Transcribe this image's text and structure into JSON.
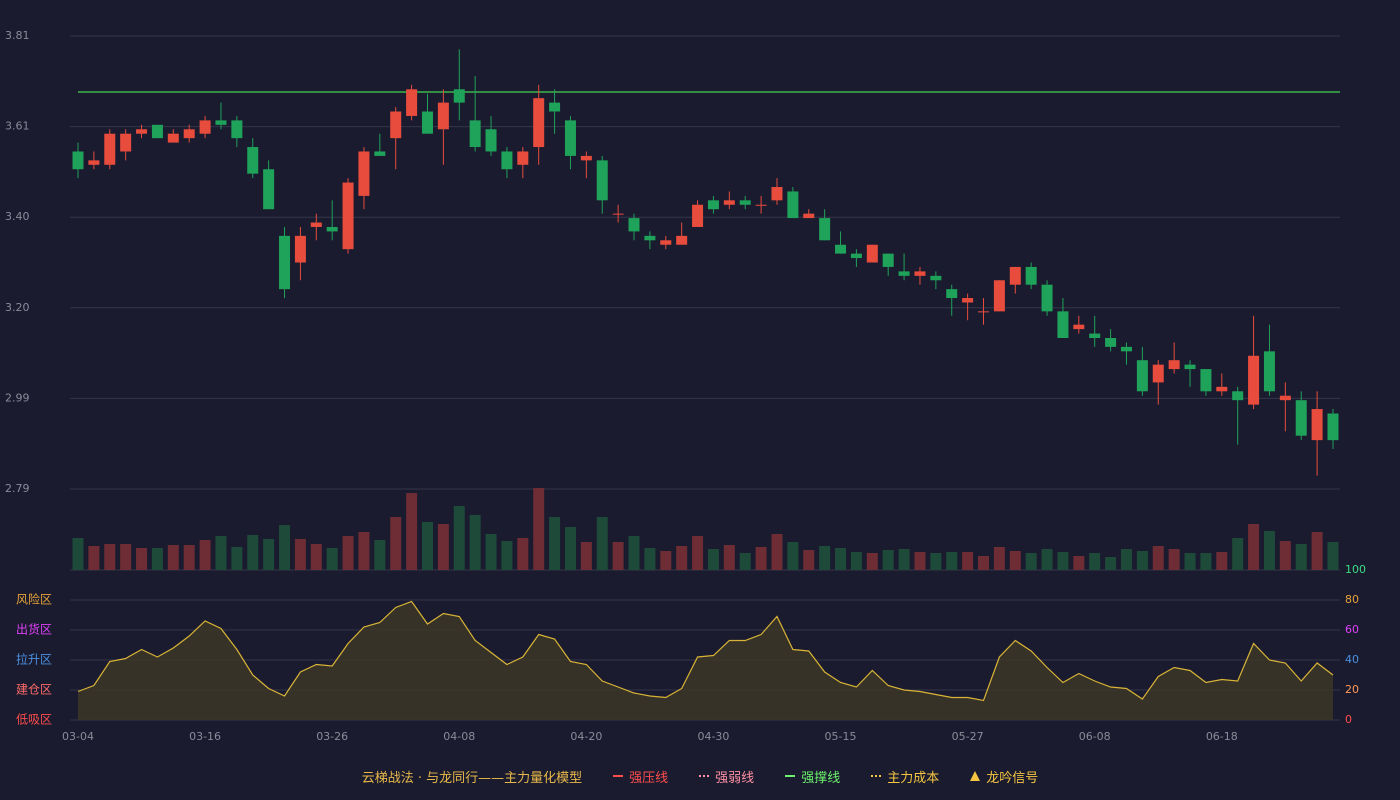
{
  "chart_data": {
    "type": "candlestick",
    "categories": [
      "03-04",
      null,
      null,
      null,
      null,
      null,
      null,
      null,
      "03-16",
      null,
      null,
      null,
      null,
      null,
      null,
      null,
      "03-26",
      null,
      null,
      null,
      null,
      null,
      null,
      null,
      "04-08",
      null,
      null,
      null,
      null,
      null,
      null,
      null,
      "04-20",
      null,
      null,
      null,
      null,
      null,
      null,
      null,
      "04-30",
      null,
      null,
      null,
      null,
      null,
      null,
      null,
      "05-15",
      null,
      null,
      null,
      null,
      null,
      null,
      null,
      "05-27",
      null,
      null,
      null,
      null,
      null,
      null,
      null,
      "06-08",
      null,
      null,
      null,
      null,
      null,
      null,
      null,
      "06-18",
      null,
      null,
      null,
      null,
      null,
      null,
      null
    ],
    "open": [
      3.55,
      3.52,
      3.52,
      3.55,
      3.59,
      3.61,
      3.57,
      3.58,
      3.59,
      3.62,
      3.62,
      3.56,
      3.51,
      3.36,
      3.3,
      3.38,
      3.38,
      3.33,
      3.45,
      3.55,
      3.58,
      3.63,
      3.64,
      3.6,
      3.69,
      3.62,
      3.6,
      3.55,
      3.52,
      3.56,
      3.66,
      3.62,
      3.53,
      3.53,
      3.41,
      3.4,
      3.36,
      3.34,
      3.34,
      3.38,
      3.44,
      3.43,
      3.44,
      3.43,
      3.44,
      3.46,
      3.4,
      3.4,
      3.34,
      3.32,
      3.3,
      3.32,
      3.28,
      3.27,
      3.27,
      3.24,
      3.21,
      3.19,
      3.19,
      3.25,
      3.29,
      3.25,
      3.19,
      3.15,
      3.14,
      3.13,
      3.11,
      3.08,
      3.03,
      3.06,
      3.07,
      3.06,
      3.01,
      3.01,
      2.98,
      3.1,
      2.99,
      2.99,
      2.9,
      2.96
    ],
    "high": [
      3.57,
      3.55,
      3.6,
      3.6,
      3.61,
      3.61,
      3.6,
      3.61,
      3.63,
      3.66,
      3.63,
      3.58,
      3.53,
      3.38,
      3.38,
      3.41,
      3.44,
      3.49,
      3.56,
      3.59,
      3.65,
      3.7,
      3.68,
      3.69,
      3.78,
      3.72,
      3.63,
      3.56,
      3.56,
      3.7,
      3.69,
      3.63,
      3.55,
      3.54,
      3.43,
      3.41,
      3.37,
      3.36,
      3.39,
      3.44,
      3.45,
      3.46,
      3.45,
      3.45,
      3.49,
      3.47,
      3.42,
      3.42,
      3.37,
      3.33,
      3.34,
      3.32,
      3.32,
      3.29,
      3.28,
      3.25,
      3.23,
      3.22,
      3.26,
      3.29,
      3.3,
      3.26,
      3.22,
      3.18,
      3.18,
      3.15,
      3.12,
      3.11,
      3.08,
      3.12,
      3.08,
      3.06,
      3.05,
      3.02,
      3.18,
      3.16,
      3.03,
      3.01,
      3.01,
      2.97
    ],
    "low": [
      3.49,
      3.51,
      3.51,
      3.53,
      3.58,
      3.58,
      3.57,
      3.57,
      3.58,
      3.6,
      3.56,
      3.49,
      3.42,
      3.22,
      3.26,
      3.35,
      3.35,
      3.32,
      3.42,
      3.54,
      3.51,
      3.62,
      3.59,
      3.52,
      3.62,
      3.55,
      3.54,
      3.49,
      3.49,
      3.52,
      3.59,
      3.51,
      3.49,
      3.41,
      3.39,
      3.35,
      3.33,
      3.33,
      3.34,
      3.38,
      3.41,
      3.42,
      3.42,
      3.41,
      3.43,
      3.4,
      3.4,
      3.35,
      3.32,
      3.29,
      3.3,
      3.27,
      3.26,
      3.25,
      3.24,
      3.18,
      3.17,
      3.16,
      3.19,
      3.23,
      3.24,
      3.18,
      3.13,
      3.14,
      3.11,
      3.1,
      3.07,
      3.0,
      2.98,
      3.05,
      3.02,
      3.0,
      3.0,
      2.89,
      2.97,
      3.0,
      2.92,
      2.9,
      2.82,
      2.88
    ],
    "close": [
      3.51,
      3.53,
      3.59,
      3.59,
      3.6,
      3.58,
      3.59,
      3.6,
      3.62,
      3.61,
      3.58,
      3.5,
      3.42,
      3.24,
      3.36,
      3.39,
      3.37,
      3.48,
      3.55,
      3.54,
      3.64,
      3.69,
      3.59,
      3.66,
      3.66,
      3.56,
      3.55,
      3.51,
      3.55,
      3.67,
      3.64,
      3.54,
      3.54,
      3.44,
      3.41,
      3.37,
      3.35,
      3.35,
      3.36,
      3.43,
      3.42,
      3.44,
      3.43,
      3.43,
      3.47,
      3.4,
      3.41,
      3.35,
      3.32,
      3.31,
      3.34,
      3.29,
      3.27,
      3.28,
      3.26,
      3.22,
      3.22,
      3.19,
      3.26,
      3.29,
      3.25,
      3.19,
      3.13,
      3.16,
      3.13,
      3.11,
      3.1,
      3.01,
      3.07,
      3.08,
      3.06,
      3.01,
      3.02,
      2.99,
      3.09,
      3.01,
      3.0,
      2.91,
      2.97,
      2.9
    ],
    "up_color": "#e84c3d",
    "down_color": "#1fa25a",
    "ylim": [
      2.79,
      3.81
    ],
    "yticks": [
      2.79,
      {
        "value": 2.994,
        "label": "2.99"
      },
      {
        "value": 3.198,
        "label": "3.20"
      },
      {
        "value": 3.402,
        "label": "3.40"
      },
      {
        "value": 3.606,
        "label": "3.61"
      },
      3.81
    ],
    "grid": true,
    "levels": [
      {
        "value": 3.684,
        "color": "#3cb44a"
      }
    ],
    "volume": [
      32,
      24,
      26,
      26,
      22,
      22,
      25,
      25,
      30,
      34,
      23,
      35,
      31,
      45,
      31,
      26,
      22,
      34,
      38,
      30,
      53,
      77,
      48,
      46,
      64,
      55,
      36,
      29,
      32,
      82,
      53,
      43,
      28,
      53,
      28,
      34,
      22,
      19,
      24,
      34,
      21,
      25,
      17,
      23,
      36,
      28,
      20,
      24,
      22,
      18,
      17,
      20,
      21,
      18,
      17,
      18,
      18,
      14,
      23,
      19,
      17,
      21,
      18,
      14,
      17,
      13,
      21,
      19,
      24,
      21,
      17,
      17,
      18,
      32,
      46,
      39,
      29,
      26,
      38,
      28
    ],
    "volume_up_color": "#6e2c34",
    "volume_down_color": "#1e4a3a",
    "indicator": {
      "axis": "y2",
      "values": [
        19,
        23,
        39,
        41,
        47,
        42,
        48,
        56,
        66,
        61,
        47,
        30,
        21,
        16,
        32,
        37,
        36,
        51,
        62,
        65,
        75,
        79,
        64,
        71,
        69,
        53,
        45,
        37,
        42,
        57,
        54,
        39,
        37,
        26,
        22,
        18,
        16,
        15,
        21,
        42,
        43,
        53,
        53,
        57,
        69,
        47,
        46,
        32,
        25,
        22,
        33,
        23,
        20,
        19,
        17,
        15,
        15,
        13,
        42,
        53,
        46,
        35,
        25,
        31,
        26,
        22,
        21,
        14,
        29,
        35,
        33,
        25,
        27,
        26,
        51,
        40,
        38,
        26,
        38,
        30
      ],
      "color": "#d9b436",
      "fill": "#3a3528"
    },
    "y2lim": [
      0,
      100
    ],
    "y2ticks": [
      0,
      20,
      40,
      60,
      80,
      100
    ],
    "y2tick_colors": [
      "#ff4d4d",
      "#ff9a5a",
      "#4a90e2",
      "#e040fb",
      "#e8a23a",
      "#3ddc84"
    ],
    "zones": [
      {
        "label": "风险区",
        "value": 80,
        "color": "#e8a23a"
      },
      {
        "label": "出货区",
        "value": 60,
        "color": "#e040fb"
      },
      {
        "label": "拉升区",
        "value": 40,
        "color": "#4a90e2"
      },
      {
        "label": "建仓区",
        "value": 20,
        "color": "#ff6b6b"
      },
      {
        "label": "低吸区",
        "value": 0,
        "color": "#ff4d4d"
      }
    ],
    "legend": {
      "title": "云梯战法 · 与龙同行——主力量化模型",
      "title_color": "#e8b84a",
      "items": [
        {
          "name": "强压线",
          "color": "#ff4d4d",
          "style": "solid"
        },
        {
          "name": "强弱线",
          "color": "#ff8fa3",
          "style": "dashed"
        },
        {
          "name": "强撑线",
          "color": "#6cf06c",
          "style": "solid"
        },
        {
          "name": "主力成本",
          "color": "#f5c542",
          "style": "dashed"
        },
        {
          "name": "龙吟信号",
          "color": "#f5c542",
          "style": "triangle"
        }
      ]
    }
  }
}
